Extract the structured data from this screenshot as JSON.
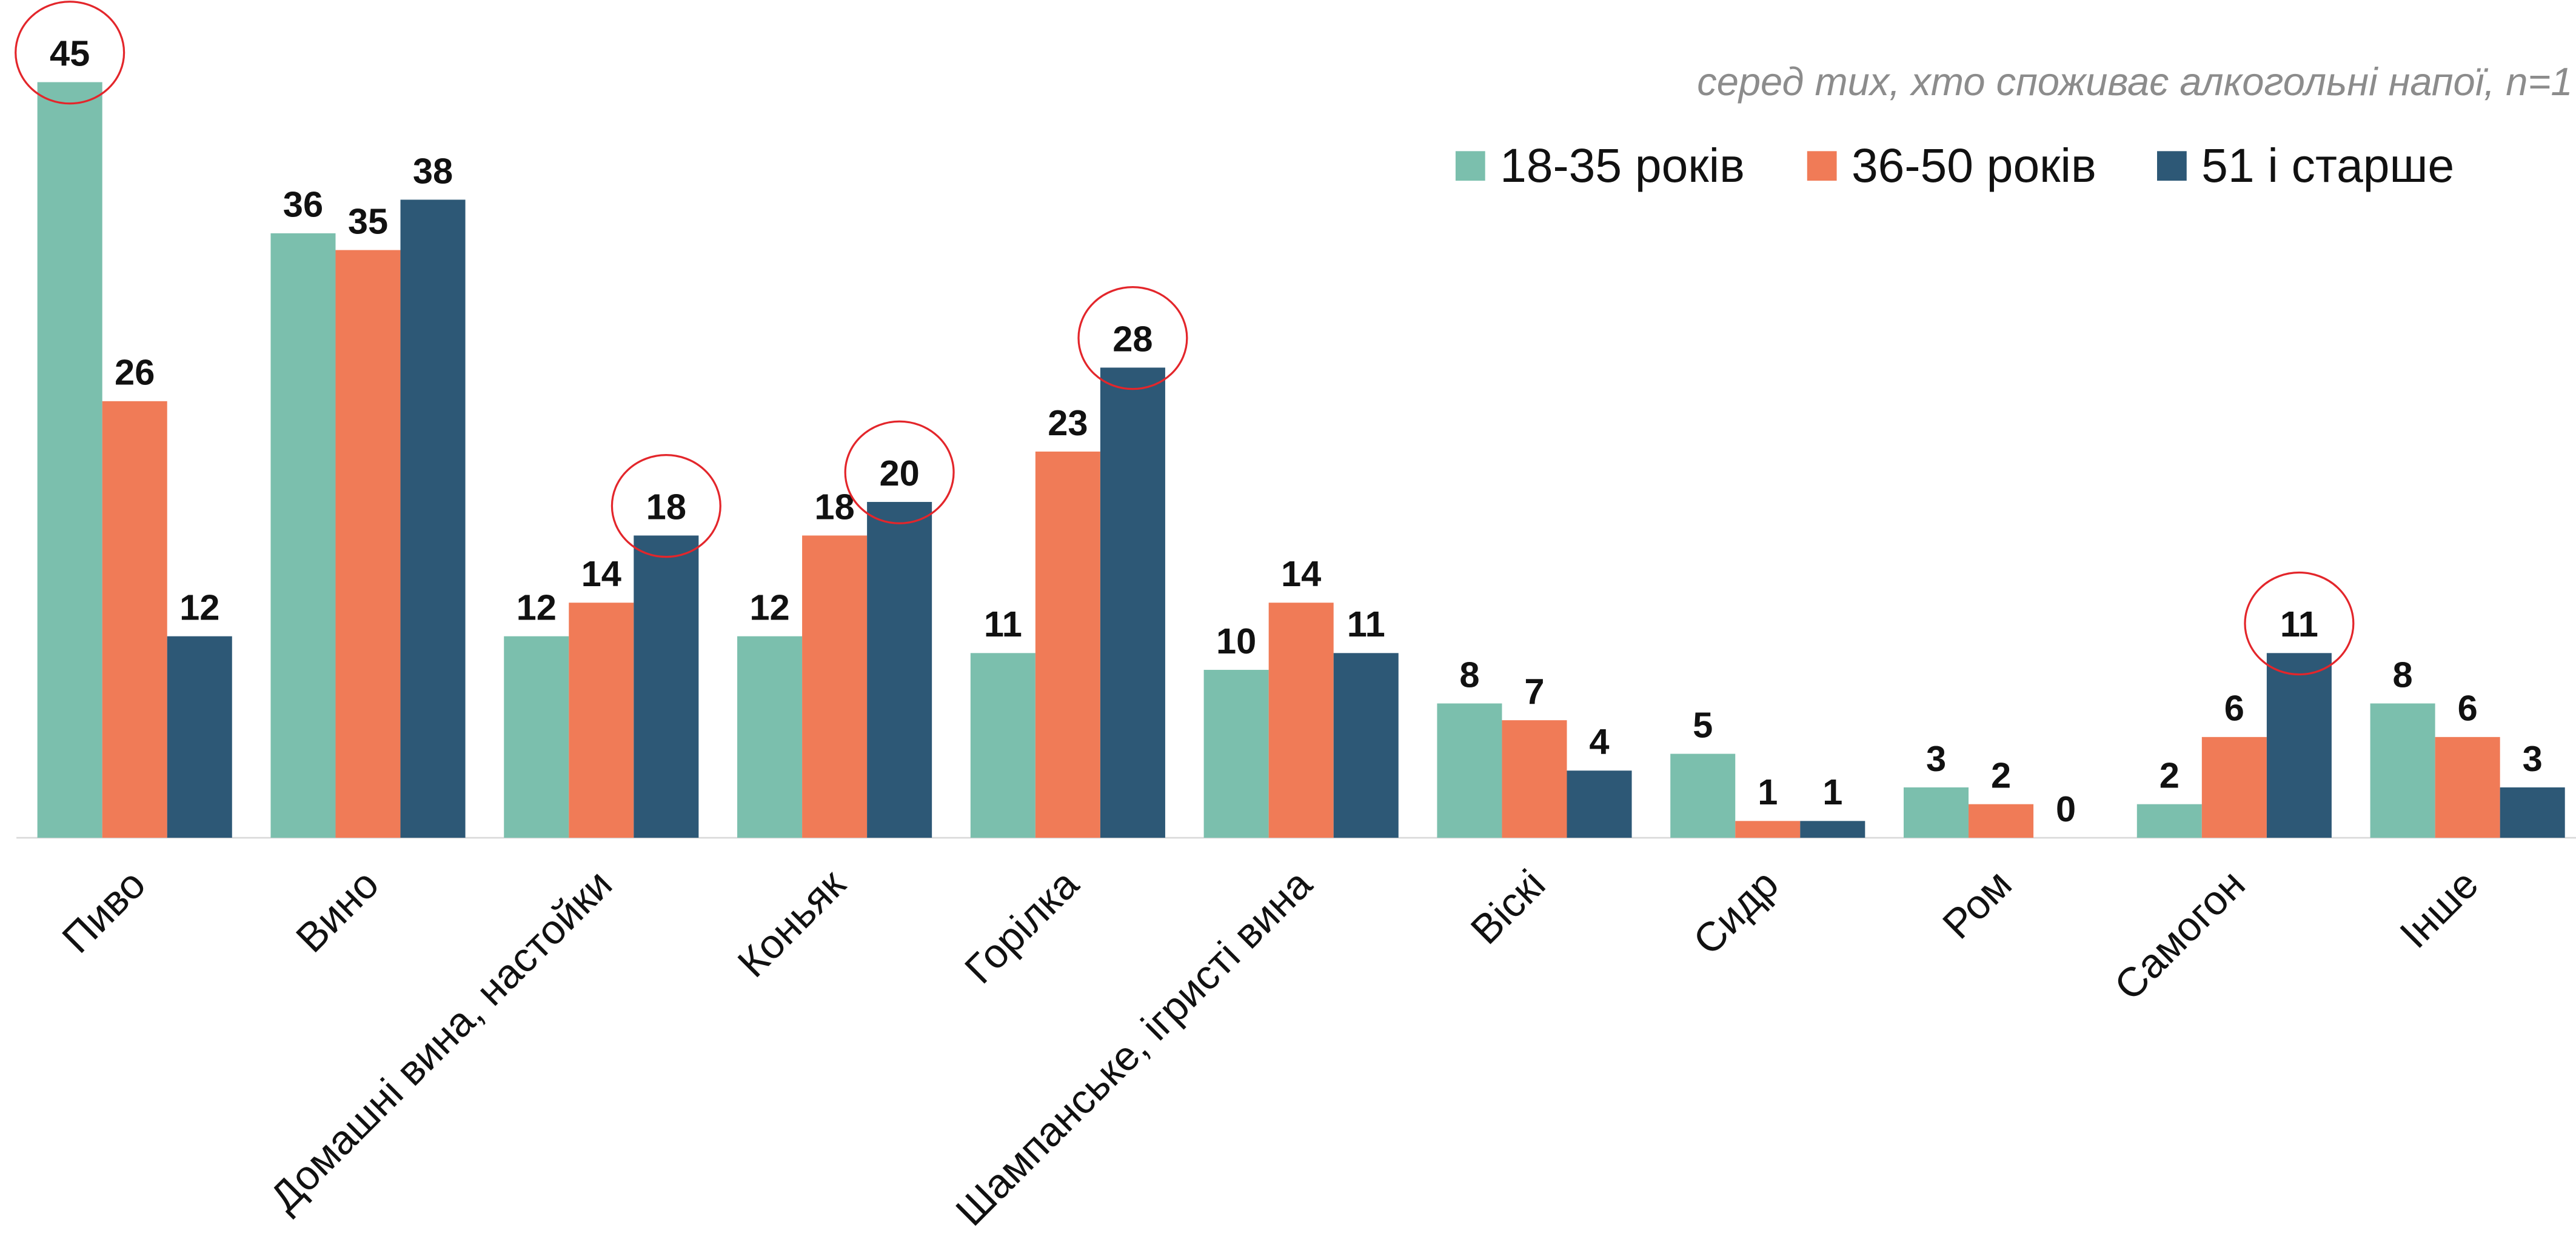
{
  "chart_data": {
    "type": "bar",
    "subtitle": "серед тих, хто споживає алкогольні напої, n=1",
    "categories": [
      "Пиво",
      "Вино",
      "Домашні вина, настойки",
      "Коньяк",
      "Горілка",
      "Шампанське, ігристі вина",
      "Віскі",
      "Сидр",
      "Ром",
      "Самогон",
      "Інше"
    ],
    "series": [
      {
        "name": "18-35 років",
        "color": "#7bbfad",
        "values": [
          45,
          36,
          12,
          12,
          11,
          10,
          8,
          5,
          3,
          2,
          8
        ]
      },
      {
        "name": "36-50 років",
        "color": "#f07b57",
        "values": [
          26,
          35,
          14,
          18,
          23,
          14,
          7,
          1,
          2,
          6,
          6
        ]
      },
      {
        "name": "51 і старше",
        "color": "#2d5876",
        "values": [
          12,
          38,
          18,
          20,
          28,
          11,
          4,
          1,
          0,
          11,
          3
        ]
      }
    ],
    "ylim": [
      0,
      45
    ],
    "legend": "top-right"
  }
}
